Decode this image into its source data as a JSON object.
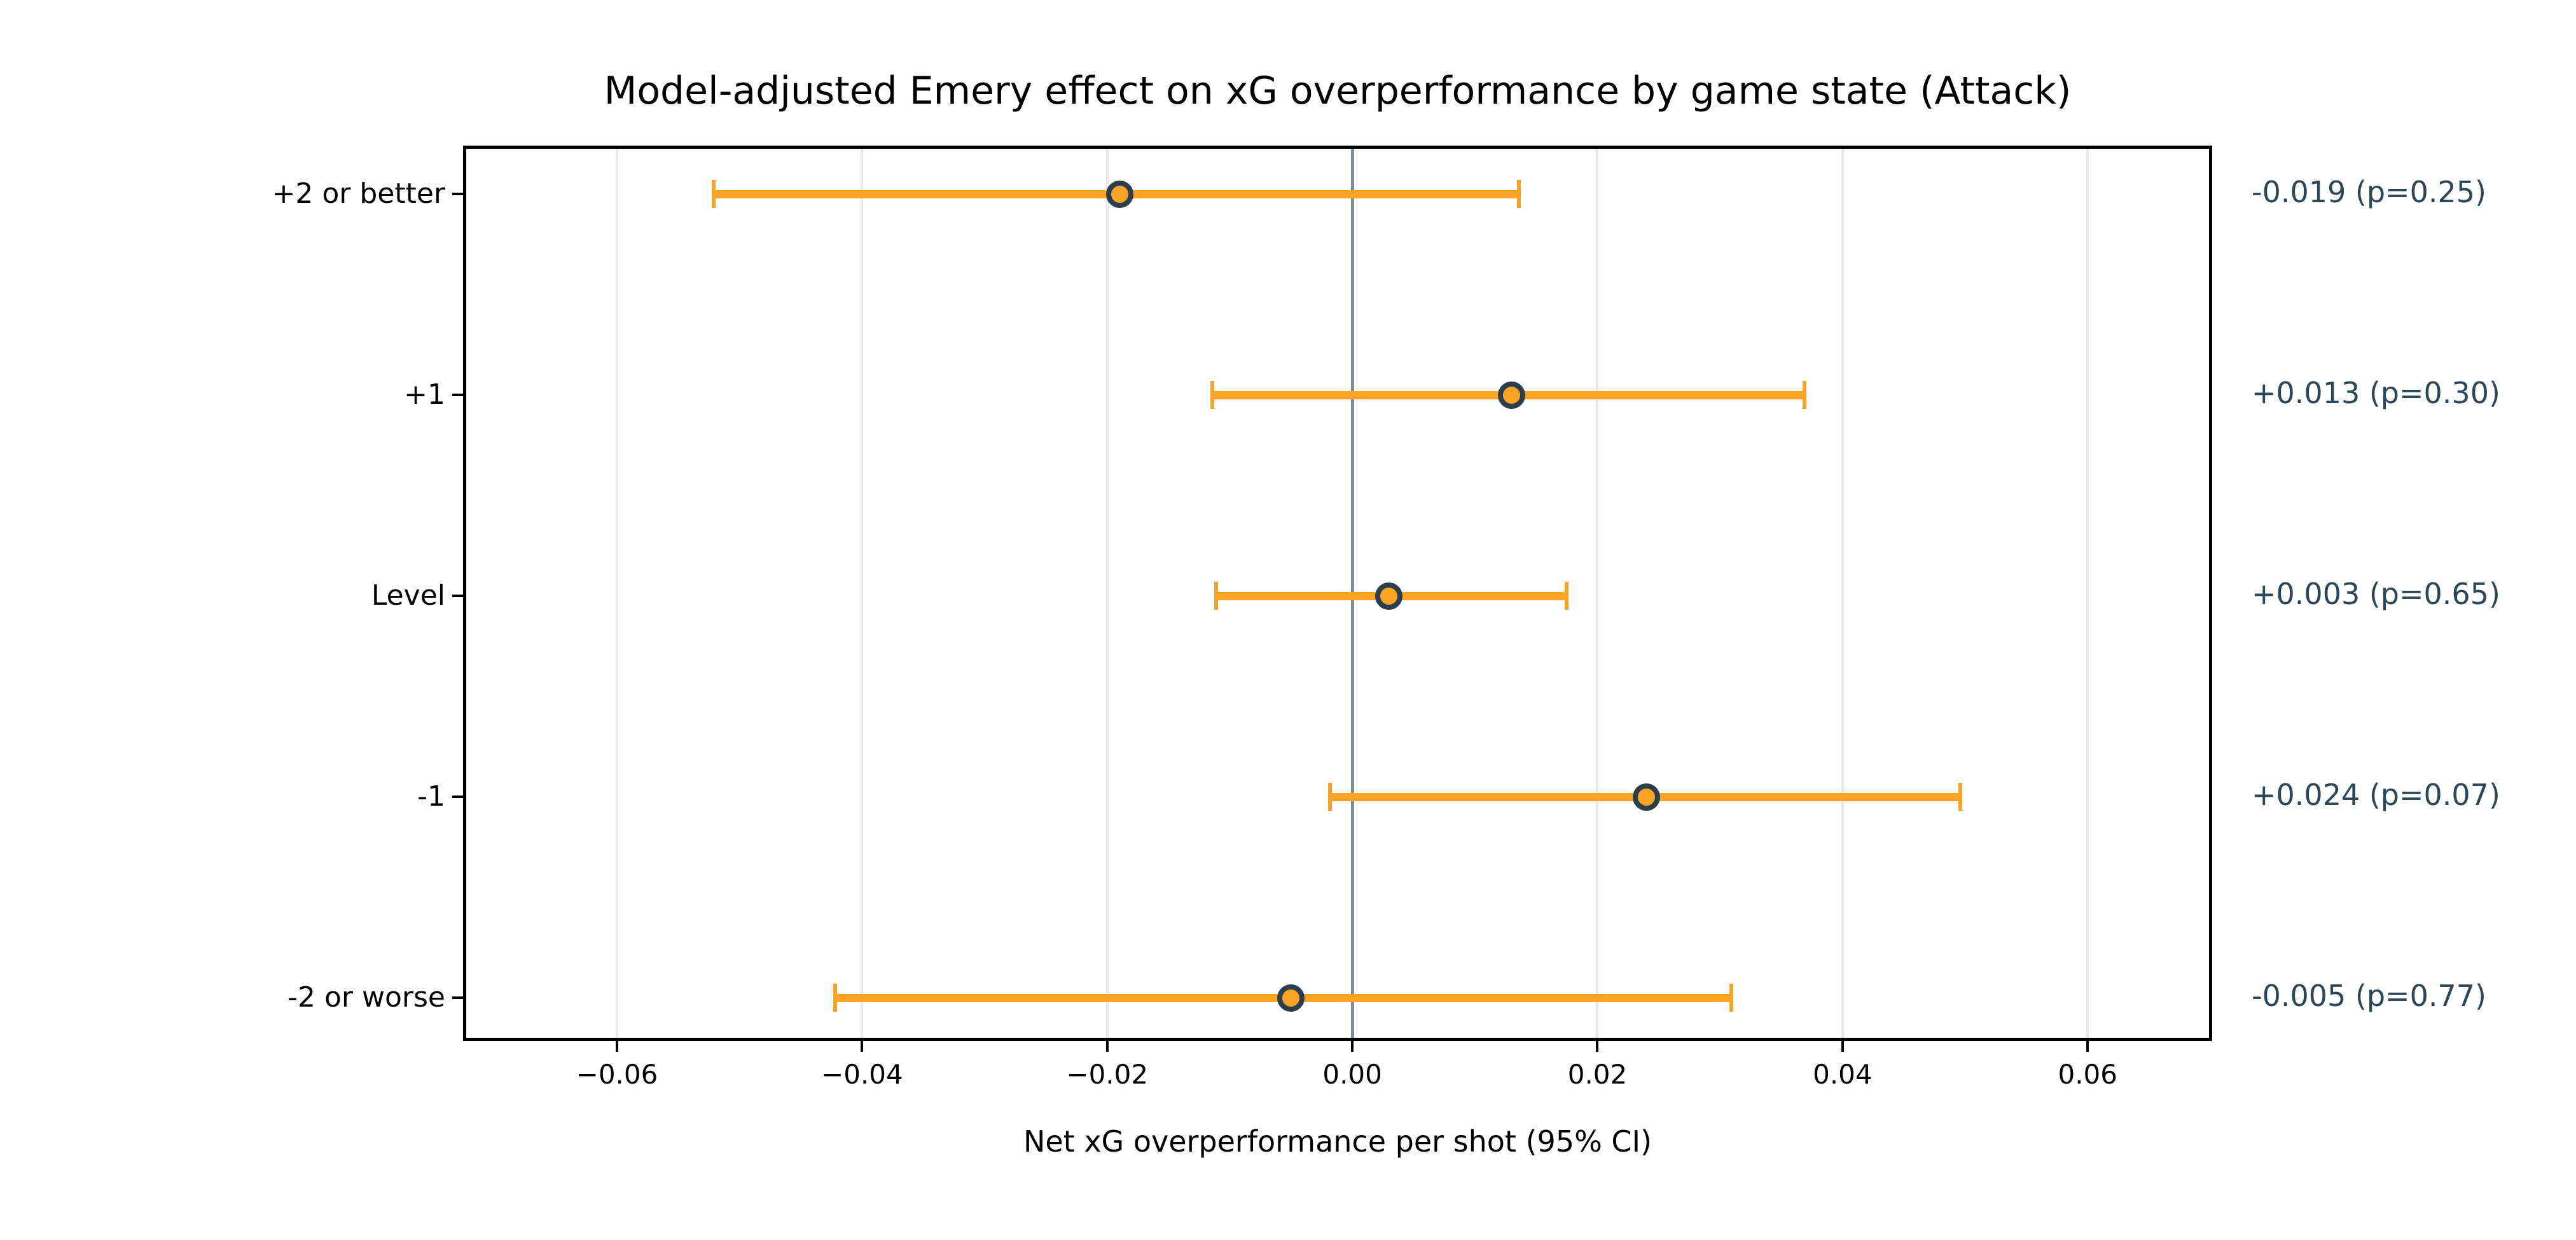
{
  "figure": {
    "title": "Model-adjusted Emery effect on xG overperformance by game state (Attack)",
    "xlabel": "Net xG overperformance per shot (95% CI)"
  },
  "colors": {
    "error_bar": "#F9A326",
    "marker_fill": "#F9A326",
    "marker_edge": "#2B3E4C",
    "zero_line": "#7D8D9C",
    "gridline": "#E9E9E9",
    "annotation_text": "#2B4759",
    "axis_spine": "#000000",
    "tick_text": "#000000"
  },
  "chart_data": {
    "type": "scatter",
    "subtype": "forest-plot-horizontal-error-bars",
    "title": "Model-adjusted Emery effect on xG overperformance by game state (Attack)",
    "xlabel": "Net xG overperformance per shot (95% CI)",
    "ylabel": "",
    "categories": [
      "+2 or better",
      "+1",
      "Level",
      "-1",
      "-2 or worse"
    ],
    "points": [
      {
        "category": "+2 or better",
        "estimate": -0.019,
        "ci_low": -0.0521,
        "ci_high": 0.0136,
        "p_value": 0.25,
        "annotation": "-0.019 (p=0.25)"
      },
      {
        "category": "+1",
        "estimate": 0.013,
        "ci_low": -0.0114,
        "ci_high": 0.0369,
        "p_value": 0.3,
        "annotation": "+0.013 (p=0.30)"
      },
      {
        "category": "Level",
        "estimate": 0.003,
        "ci_low": -0.0111,
        "ci_high": 0.0175,
        "p_value": 0.65,
        "annotation": "+0.003 (p=0.65)"
      },
      {
        "category": "-1",
        "estimate": 0.024,
        "ci_low": -0.0018,
        "ci_high": 0.0496,
        "p_value": 0.07,
        "annotation": "+0.024 (p=0.07)"
      },
      {
        "category": "-2 or worse",
        "estimate": -0.005,
        "ci_low": -0.0422,
        "ci_high": 0.0309,
        "p_value": 0.77,
        "annotation": "-0.005 (p=0.77)"
      }
    ],
    "x_ticks": [
      {
        "value": -0.06,
        "label": "−0.06"
      },
      {
        "value": -0.04,
        "label": "−0.04"
      },
      {
        "value": -0.02,
        "label": "−0.02"
      },
      {
        "value": 0.0,
        "label": "0.00"
      },
      {
        "value": 0.02,
        "label": "0.02"
      },
      {
        "value": 0.04,
        "label": "0.04"
      },
      {
        "value": 0.06,
        "label": "0.06"
      }
    ],
    "xlim": [
      -0.0723,
      0.0699
    ],
    "zero_reference_line": 0.0,
    "grid": "vertical gridlines at x ticks",
    "legend": "none"
  }
}
